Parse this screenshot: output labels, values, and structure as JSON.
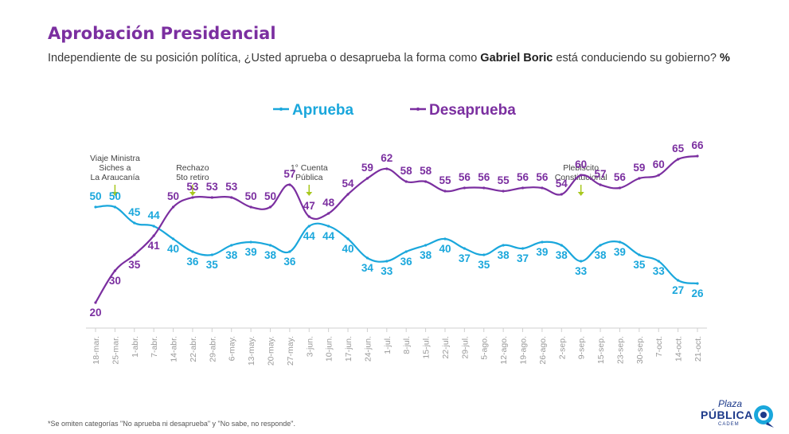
{
  "header": {
    "title": "Aprobación Presidencial",
    "subtitle_before": "Independiente de su posición política, ¿Usted aprueba o desaprueba la forma como ",
    "subtitle_bold": "Gabriel Boric",
    "subtitle_after": " está conduciendo su gobierno? ",
    "subtitle_unit": "%"
  },
  "footnote": "*Se omiten categorías \"No aprueba ni desaprueba\" y \"No sabe, no responde\".",
  "logo": {
    "line1": "Plaza",
    "line2": "PÚBLICA",
    "line3": "CADEM"
  },
  "colors": {
    "aprueba": "#1aa7dc",
    "desaprueba": "#7b2fa0",
    "title": "#7b2fa0",
    "annotation_arrow": "#a8c81e",
    "axis": "#cfcfcf",
    "tick_text": "#9a9a9a"
  },
  "chart_data": {
    "type": "line",
    "title": "Aprobación Presidencial",
    "xlabel": "",
    "ylabel": "",
    "legend_position": "top-center",
    "grid": false,
    "ylim": [
      15,
      70
    ],
    "categories": [
      "18-mar.",
      "25-mar.",
      "1-abr.",
      "7-abr.",
      "14-abr.",
      "22-abr.",
      "29-abr.",
      "6-may.",
      "13-may.",
      "20-may.",
      "27-may.",
      "3-jun.",
      "10-jun.",
      "17-jun.",
      "24-jun.",
      "1-jul.",
      "8-jul.",
      "15-jul.",
      "22-jul.",
      "29-jul.",
      "5-ago.",
      "12-ago.",
      "19-ago.",
      "26-ago.",
      "2-sep.",
      "9-sep.",
      "15-sep.",
      "23-sep.",
      "30-sep.",
      "7-oct.",
      "14-oct.",
      "21-oct."
    ],
    "series": [
      {
        "name": "Aprueba",
        "color": "#1aa7dc",
        "values": [
          50,
          50,
          45,
          44,
          40,
          36,
          35,
          38,
          39,
          38,
          36,
          44,
          44,
          40,
          34,
          33,
          36,
          38,
          40,
          37,
          35,
          38,
          37,
          39,
          38,
          33,
          38,
          39,
          35,
          33,
          27,
          26
        ]
      },
      {
        "name": "Desaprueba",
        "color": "#7b2fa0",
        "values": [
          20,
          30,
          35,
          41,
          50,
          53,
          53,
          53,
          50,
          50,
          57,
          47,
          48,
          54,
          59,
          62,
          58,
          58,
          55,
          56,
          56,
          55,
          56,
          56,
          54,
          60,
          57,
          56,
          59,
          60,
          65,
          66
        ]
      }
    ],
    "annotations": [
      {
        "category": "25-mar.",
        "text_lines": [
          "Viaje Ministra",
          "Siches a",
          "La Araucanía"
        ]
      },
      {
        "category": "22-abr.",
        "text_lines": [
          "Rechazo",
          "5to retiro"
        ]
      },
      {
        "category": "3-jun.",
        "text_lines": [
          "1° Cuenta",
          "Pública"
        ]
      },
      {
        "category": "9-sep.",
        "text_lines": [
          "Plebiscito",
          "Constitucional"
        ]
      }
    ]
  }
}
